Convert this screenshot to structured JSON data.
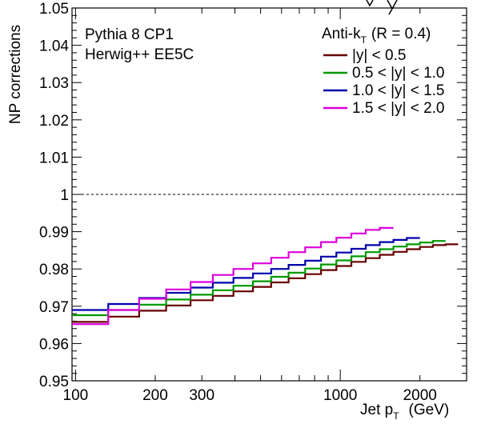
{
  "chart_data": {
    "type": "line",
    "step": true,
    "title": "",
    "xlabel": {
      "main": "Jet p",
      "sub": "T",
      "unit": "(GeV)"
    },
    "ylabel": "NP corrections",
    "xscale": "log",
    "xlim": [
      97,
      3000
    ],
    "ylim": [
      0.95,
      1.05
    ],
    "x_ticks": [
      100,
      200,
      300,
      1000,
      2000
    ],
    "x_tick_labels": [
      "100",
      "200",
      "300",
      "1000",
      "2000"
    ],
    "y_ticks": [
      0.95,
      0.96,
      0.97,
      0.98,
      0.99,
      1.0,
      1.01,
      1.02,
      1.03,
      1.04,
      1.05
    ],
    "y_tick_labels": [
      "0.95",
      "0.96",
      "0.97",
      "0.98",
      "0.99",
      "1",
      "1.01",
      "1.02",
      "1.03",
      "1.04",
      "1.05"
    ],
    "reference_line": 1.0,
    "grid": false,
    "legend_position": "top-right",
    "legend_title": {
      "main": "Anti-k",
      "sub": "T",
      "rest": "(R = 0.4)"
    },
    "annotations": [
      "Pythia 8 CP1",
      "Herwig++ EE5C"
    ],
    "bin_edges": [
      97,
      133,
      174,
      220,
      272,
      330,
      395,
      468,
      548,
      638,
      737,
      846,
      967,
      1101,
      1248,
      1410,
      1588,
      1784,
      2000,
      2238,
      2500,
      2787
    ],
    "series": [
      {
        "name": "|y| < 0.5",
        "color": "#660000",
        "values": [
          0.9658,
          0.9672,
          0.9688,
          0.9702,
          0.9716,
          0.9728,
          0.974,
          0.9752,
          0.9764,
          0.9775,
          0.9786,
          0.9797,
          0.9808,
          0.9819,
          0.9829,
          0.9838,
          0.9846,
          0.9853,
          0.9859,
          0.9864,
          0.9866
        ]
      },
      {
        "name": "0.5 < |y| < 1.0",
        "color": "#009900",
        "values": [
          0.9676,
          0.969,
          0.9704,
          0.9718,
          0.9731,
          0.9743,
          0.9755,
          0.9767,
          0.9779,
          0.979,
          0.9801,
          0.9812,
          0.9823,
          0.9834,
          0.9845,
          0.9853,
          0.986,
          0.9866,
          0.9871,
          0.9875
        ]
      },
      {
        "name": "1.0 < |y| < 1.5",
        "color": "#0000aa",
        "values": [
          0.969,
          0.9706,
          0.9722,
          0.9736,
          0.975,
          0.9763,
          0.9776,
          0.9788,
          0.98,
          0.9811,
          0.9822,
          0.9833,
          0.9844,
          0.9854,
          0.9864,
          0.9872,
          0.9878,
          0.9883
        ]
      },
      {
        "name": "1.5 < |y| < 2.0",
        "color": "#dd00dd",
        "values": [
          0.9652,
          0.969,
          0.972,
          0.9745,
          0.9765,
          0.9784,
          0.98,
          0.9815,
          0.983,
          0.9845,
          0.9858,
          0.9872,
          0.9884,
          0.9895,
          0.9905,
          0.991
        ]
      }
    ]
  }
}
